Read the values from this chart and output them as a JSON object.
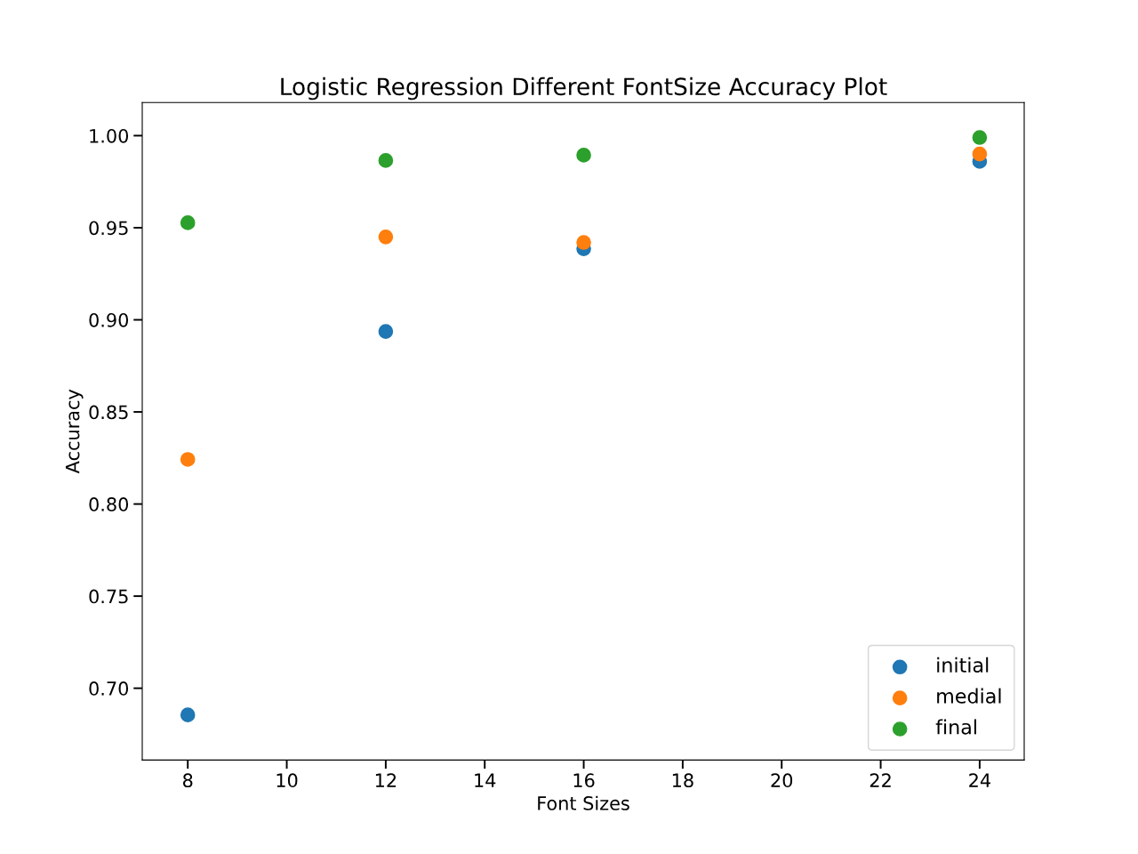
{
  "chart_data": {
    "type": "scatter",
    "title": "Logistic Regression Different FontSize Accuracy Plot",
    "xlabel": "Font Sizes",
    "ylabel": "Accuracy",
    "x": [
      8,
      12,
      16,
      24
    ],
    "series": [
      {
        "name": "initial",
        "color": "#1f77b4",
        "values": [
          0.6855,
          0.8937,
          0.9386,
          0.986
        ]
      },
      {
        "name": "medial",
        "color": "#ff7f0e",
        "values": [
          0.8242,
          0.945,
          0.942,
          0.99
        ]
      },
      {
        "name": "final",
        "color": "#2ca02c",
        "values": [
          0.9527,
          0.9865,
          0.9894,
          0.999
        ]
      }
    ],
    "xlim": [
      7.08,
      24.9
    ],
    "xticks": [
      8,
      10,
      12,
      14,
      16,
      18,
      20,
      22,
      24
    ],
    "ylim": [
      0.661,
      1.018
    ],
    "yticks": [
      {
        "value": 0.7,
        "label": "0.70"
      },
      {
        "value": 0.75,
        "label": "0.75"
      },
      {
        "value": 0.8,
        "label": "0.80"
      },
      {
        "value": 0.85,
        "label": "0.85"
      },
      {
        "value": 0.9,
        "label": "0.90"
      },
      {
        "value": 0.95,
        "label": "0.95"
      },
      {
        "value": 1.0,
        "label": "1.00"
      }
    ],
    "legend": "lower right",
    "grid": false,
    "marker": "circle"
  }
}
